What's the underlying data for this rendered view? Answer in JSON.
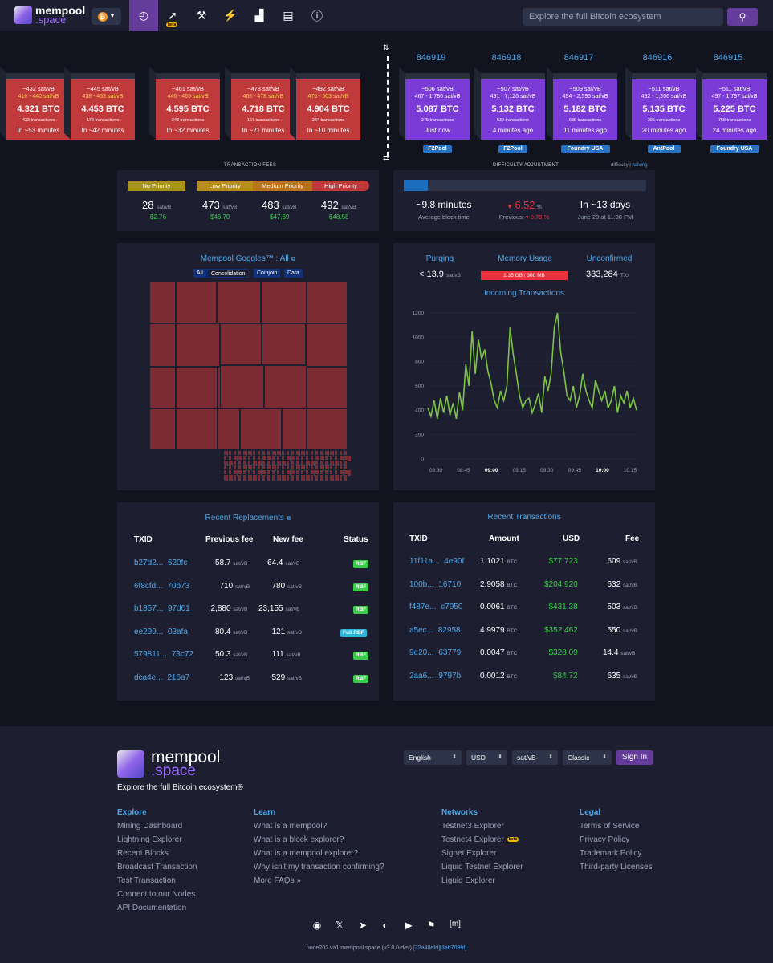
{
  "nav": {
    "logo_top": "mempool",
    "logo_bottom": ".space",
    "search_placeholder": "Explore the full Bitcoin ecosystem",
    "beta": "beta"
  },
  "mempool_blocks": [
    {
      "median": "~432 sat/vB",
      "range": "416 - 440 sat/vB",
      "btc": "4.321 BTC",
      "txs": "433 transactions",
      "eta": "In ~53 minutes"
    },
    {
      "median": "~445 sat/vB",
      "range": "438 - 453 sat/vB",
      "btc": "4.453 BTC",
      "txs": "178 transactions",
      "eta": "In ~42 minutes"
    },
    {
      "median": "~461 sat/vB",
      "range": "446 - 469 sat/vB",
      "btc": "4.595 BTC",
      "txs": "343 transactions",
      "eta": "In ~32 minutes"
    },
    {
      "median": "~473 sat/vB",
      "range": "468 - 478 sat/vB",
      "btc": "4.718 BTC",
      "txs": "167 transactions",
      "eta": "In ~21 minutes"
    },
    {
      "median": "~492 sat/vB",
      "range": "475 - 503 sat/vB",
      "btc": "4.904 BTC",
      "txs": "284 transactions",
      "eta": "In ~10 minutes"
    }
  ],
  "mined_blocks": [
    {
      "height": "846919",
      "median": "~506 sat/vB",
      "range": "467 - 1,780 sat/vB",
      "btc": "5.087 BTC",
      "txs": "275 transactions",
      "age": "Just now",
      "pool": "F2Pool"
    },
    {
      "height": "846918",
      "median": "~507 sat/vB",
      "range": "491 - 7,126 sat/vB",
      "btc": "5.132 BTC",
      "txs": "539 transactions",
      "age": "4 minutes ago",
      "pool": "F2Pool"
    },
    {
      "height": "846917",
      "median": "~509 sat/vB",
      "range": "494 - 2,595 sat/vB",
      "btc": "5.182 BTC",
      "txs": "638 transactions",
      "age": "11 minutes ago",
      "pool": "Foundry USA"
    },
    {
      "height": "846916",
      "median": "~511 sat/vB",
      "range": "492 - 1,206 sat/vB",
      "btc": "5.135 BTC",
      "txs": "306 transactions",
      "age": "20 minutes ago",
      "pool": "AntPool"
    },
    {
      "height": "846915",
      "median": "~511 sat/vB",
      "range": "497 - 1,797 sat/vB",
      "btc": "5.225 BTC",
      "txs": "758 transactions",
      "age": "24 minutes ago",
      "pool": "Foundry USA"
    }
  ],
  "fees": {
    "title": "TRANSACTION FEES",
    "no_priority": "No Priority",
    "low_priority": "Low Priority",
    "medium_priority": "Medium Priority",
    "high_priority": "High Priority",
    "values": [
      {
        "v": "28",
        "usd": "$2.76"
      },
      {
        "v": "473",
        "usd": "$46.70"
      },
      {
        "v": "483",
        "usd": "$47.69"
      },
      {
        "v": "492",
        "usd": "$48.58"
      }
    ],
    "unit": "sat/vB"
  },
  "difficulty": {
    "title": "DIFFICULTY ADJUSTMENT",
    "toggle_a": "difficulty",
    "toggle_sep": "|",
    "toggle_b": "halving",
    "progress": 0.1,
    "block_time": "~9.8 minutes",
    "block_time_lbl": "Average block time",
    "change": "6.52",
    "pct": "%",
    "prev_lbl": "Previous:",
    "prev": "0.79",
    "eta": "In ~13 days",
    "eta_date": "June 20 at 11:00 PM"
  },
  "goggles": {
    "title": "Mempool Goggles™ : All",
    "filters": [
      "All",
      "Consolidation",
      "Coinjoin",
      "Data"
    ]
  },
  "stats": {
    "purging_lbl": "Purging",
    "purging": "< 13.9",
    "usage_lbl": "Memory Usage",
    "usage": "1.35 GB / 300 MB",
    "unconf_lbl": "Unconfirmed",
    "unconf": "333,284",
    "txs": "TXs",
    "incoming": "Incoming Transactions",
    "unit": "sat/vB"
  },
  "chart_data": {
    "type": "line",
    "title": "",
    "yticks": [
      "0",
      "200",
      "400",
      "600",
      "800",
      "1000",
      "1200"
    ],
    "ylim": [
      0,
      1200
    ],
    "xticks": [
      "08:30",
      "08:45",
      "09:00",
      "09:15",
      "09:30",
      "09:45",
      "10:00",
      "10:15"
    ],
    "values": [
      420,
      350,
      480,
      330,
      500,
      380,
      520,
      360,
      460,
      330,
      550,
      400,
      780,
      600,
      1050,
      700,
      980,
      820,
      900,
      720,
      620,
      480,
      420,
      560,
      480,
      600,
      1080,
      860,
      700,
      520,
      420,
      480,
      500,
      380,
      450,
      540,
      380,
      680,
      560,
      700,
      1080,
      1200,
      880,
      720,
      520,
      480,
      600,
      420,
      520,
      700,
      560,
      480,
      420,
      650,
      560,
      480,
      560,
      420,
      480,
      600,
      380,
      520,
      460,
      560,
      420,
      500,
      400
    ]
  },
  "replacements": {
    "title": "Recent Replacements",
    "h": [
      "TXID",
      "Previous fee",
      "New fee",
      "Status"
    ],
    "rows": [
      {
        "a": "b27d2...",
        "b": "620fc",
        "prev": "58.7",
        "new": "64.4",
        "status": "RBF"
      },
      {
        "a": "6f8cfd...",
        "b": "70b73",
        "prev": "710",
        "new": "780",
        "status": "RBF"
      },
      {
        "a": "b1857...",
        "b": "97d01",
        "prev": "2,880",
        "new": "23,155",
        "status": "RBF"
      },
      {
        "a": "ee299...",
        "b": "03afa",
        "prev": "80.4",
        "new": "121",
        "status": "Full RBF"
      },
      {
        "a": "579811...",
        "b": "73c72",
        "prev": "50.3",
        "new": "111",
        "status": "RBF"
      },
      {
        "a": "dca4e...",
        "b": "216a7",
        "prev": "123",
        "new": "529",
        "status": "RBF"
      }
    ]
  },
  "recent": {
    "title": "Recent Transactions",
    "h": [
      "TXID",
      "Amount",
      "USD",
      "Fee"
    ],
    "btc": "BTC",
    "rows": [
      {
        "a": "11f11a...",
        "b": "4e90f",
        "amt": "1.1021",
        "usd": "$77,723",
        "fee": "609"
      },
      {
        "a": "100b...",
        "b": "16710",
        "amt": "2.9058",
        "usd": "$204,920",
        "fee": "632"
      },
      {
        "a": "f487e...",
        "b": "c7950",
        "amt": "0.0061",
        "usd": "$431.38",
        "fee": "503"
      },
      {
        "a": "a5ec...",
        "b": "82958",
        "amt": "4.9979",
        "usd": "$352,462",
        "fee": "550"
      },
      {
        "a": "9e20...",
        "b": "63779",
        "amt": "0.0047",
        "usd": "$328.09",
        "fee": "14.4"
      },
      {
        "a": "2aa6...",
        "b": "9797b",
        "amt": "0.0012",
        "usd": "$84.72",
        "fee": "635"
      }
    ]
  },
  "footer": {
    "logo_top": "mempool",
    "logo_bottom": ".space",
    "tagline": "Explore the full Bitcoin ecosystem®",
    "language": "English",
    "currency": "USD",
    "unit": "sat/vB",
    "theme": "Classic",
    "signin": "Sign In",
    "explore_h": "Explore",
    "explore": [
      "Mining Dashboard",
      "Lightning Explorer",
      "Recent Blocks",
      "Broadcast Transaction",
      "Test Transaction",
      "Connect to our Nodes",
      "API Documentation"
    ],
    "learn_h": "Learn",
    "learn": [
      "What is a mempool?",
      "What is a block explorer?",
      "What is a mempool explorer?",
      "Why isn't my transaction confirming?",
      "More FAQs »"
    ],
    "networks_h": "Networks",
    "networks": [
      "Testnet3 Explorer",
      "Testnet4 Explorer",
      "Signet Explorer",
      "Liquid Testnet Explorer",
      "Liquid Explorer"
    ],
    "legal_h": "Legal",
    "legal": [
      "Terms of Service",
      "Privacy Policy",
      "Trademark Policy",
      "Third-party Licenses"
    ],
    "node": "node202.va1.mempool.space (v3.0.0-dev)",
    "hash1": "[22a48efd]",
    "hash2": "[3ab709bf]",
    "beta": "beta"
  }
}
